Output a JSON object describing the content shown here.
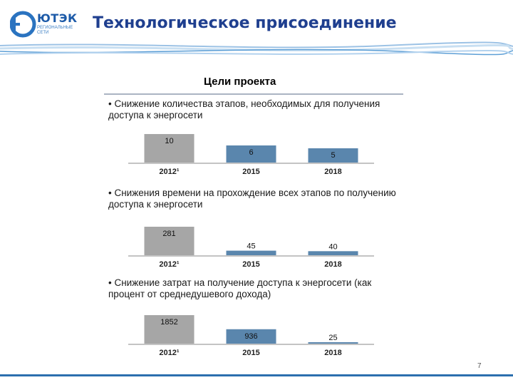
{
  "logo": {
    "name": "ЮТЭК",
    "subtitle": "РЕГИОНАЛЬНЫЕ СЕТИ"
  },
  "slide": {
    "title": "Технологическое присоединение",
    "page_number": "7"
  },
  "panel": {
    "title": "Цели проекта"
  },
  "sections": [
    {
      "text": "• Снижение количества этапов, необходимых для получения доступа к энергосети"
    },
    {
      "text": "• Снижения времени на прохождение всех этапов по получению доступа к энергосети"
    },
    {
      "text": "• Снижение затрат на получение доступа к энергосети (как процент от среднедушевого дохода)"
    }
  ],
  "colors": {
    "bar_2012": "#a6a6a6",
    "bar_other": "#5a86ad",
    "title": "#1f3f8f",
    "axis": "#888888"
  },
  "chart_data": [
    {
      "type": "bar",
      "categories": [
        "2012¹",
        "2015",
        "2018"
      ],
      "values": [
        10,
        6,
        5
      ],
      "labels": [
        "10",
        "6",
        "5"
      ],
      "ylim": [
        0,
        10
      ]
    },
    {
      "type": "bar",
      "categories": [
        "2012¹",
        "2015",
        "2018"
      ],
      "values": [
        281,
        45,
        40
      ],
      "labels": [
        "281",
        "45",
        "40"
      ],
      "ylim": [
        0,
        281
      ]
    },
    {
      "type": "bar",
      "categories": [
        "2012¹",
        "2015",
        "2018"
      ],
      "values": [
        1852,
        936,
        25
      ],
      "labels": [
        "1852",
        "936",
        "25"
      ],
      "ylim": [
        0,
        1852
      ]
    }
  ]
}
